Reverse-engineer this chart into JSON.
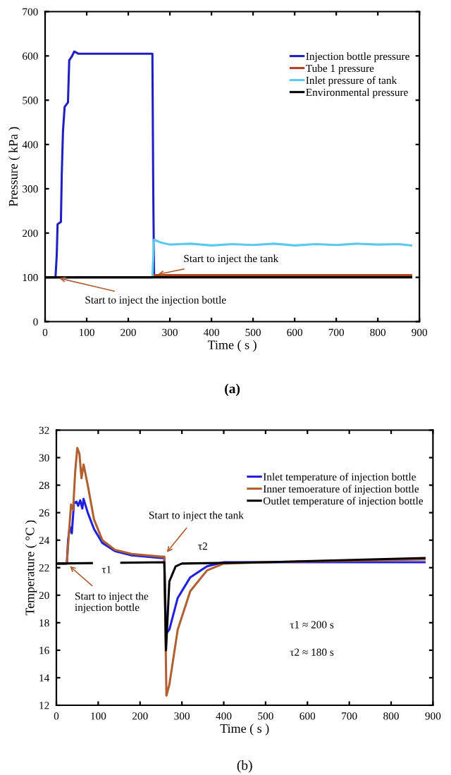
{
  "chart_data": [
    {
      "type": "line",
      "title": "(a)",
      "xlabel": "Time ( s )",
      "ylabel": "Pressure ( kPa )",
      "xlim": [
        0,
        900
      ],
      "ylim": [
        0,
        700
      ],
      "xticks": [
        0,
        100,
        200,
        300,
        400,
        500,
        600,
        700,
        800,
        900
      ],
      "yticks": [
        0,
        100,
        200,
        300,
        400,
        500,
        600,
        700
      ],
      "legend": "top right",
      "grid": false,
      "series": [
        {
          "name": "Injection bottle pressure",
          "color": "#2020c0",
          "x": [
            0,
            25,
            28,
            30,
            38,
            40,
            43,
            47,
            55,
            58,
            65,
            70,
            80,
            258,
            260,
            262,
            880
          ],
          "values": [
            100,
            100,
            150,
            220,
            225,
            330,
            430,
            485,
            495,
            590,
            600,
            610,
            605,
            605,
            300,
            105,
            102
          ]
        },
        {
          "name": "Tube 1 pressure",
          "color": "#b04020",
          "x": [
            0,
            258,
            262,
            880
          ],
          "values": [
            100,
            100,
            105,
            105
          ]
        },
        {
          "name": "Inlet pressure of tank",
          "color": "#5bc8f0",
          "x": [
            0,
            258,
            262,
            280,
            300,
            350,
            400,
            450,
            500,
            550,
            600,
            650,
            700,
            750,
            800,
            850,
            880
          ],
          "values": [
            100,
            100,
            185,
            178,
            174,
            176,
            172,
            175,
            173,
            176,
            172,
            175,
            173,
            176,
            174,
            175,
            172
          ]
        },
        {
          "name": "Environmental pressure",
          "color": "#000000",
          "x": [
            0,
            880
          ],
          "values": [
            100,
            100
          ]
        }
      ],
      "annotations": [
        {
          "text": "Start to inject the tank",
          "x": 262,
          "y": 105
        },
        {
          "text": "Start to inject the injection bottle",
          "x": 25,
          "y": 100
        }
      ]
    },
    {
      "type": "line",
      "title": "(b)",
      "xlabel": "Time ( s )",
      "ylabel": "Temperature ( °C )",
      "xlim": [
        0,
        900
      ],
      "ylim": [
        12,
        32
      ],
      "xticks": [
        0,
        100,
        200,
        300,
        400,
        500,
        600,
        700,
        800,
        900
      ],
      "yticks": [
        12,
        14,
        16,
        18,
        20,
        22,
        24,
        26,
        28,
        30,
        32
      ],
      "legend": "top right",
      "grid": false,
      "series": [
        {
          "name": "Inlet temperature of injection bottle",
          "color": "#2020e0",
          "x": [
            0,
            25,
            28,
            32,
            37,
            42,
            48,
            52,
            57,
            62,
            65,
            75,
            90,
            110,
            140,
            180,
            250,
            258,
            262,
            270,
            290,
            320,
            360,
            400,
            500,
            880
          ],
          "values": [
            22.3,
            22.3,
            24,
            25,
            24.5,
            26.7,
            26.8,
            26.5,
            26.9,
            26.3,
            27,
            26,
            24.8,
            23.8,
            23.2,
            22.9,
            22.7,
            22.7,
            17.2,
            17.5,
            19.8,
            21.3,
            22.1,
            22.4,
            22.4,
            22.4
          ]
        },
        {
          "name": "Inner temoerature of injection bottle",
          "color": "#b06030",
          "x": [
            0,
            25,
            30,
            35,
            40,
            45,
            50,
            55,
            60,
            65,
            75,
            90,
            110,
            140,
            180,
            250,
            258,
            263,
            270,
            290,
            320,
            360,
            400,
            500,
            880
          ],
          "values": [
            22.3,
            22.3,
            24.5,
            26.6,
            26.2,
            29,
            30.7,
            30.3,
            28.5,
            29.5,
            28,
            25.5,
            24,
            23.3,
            23,
            22.8,
            22.8,
            12.7,
            13.5,
            17.5,
            20.3,
            21.8,
            22.3,
            22.4,
            22.6
          ]
        },
        {
          "name": "Outlet temperature of injection bottle",
          "color": "#000000",
          "x": [
            0,
            258,
            262,
            270,
            285,
            300,
            500,
            880
          ],
          "values": [
            22.3,
            22.4,
            16,
            21,
            22.1,
            22.3,
            22.4,
            22.7
          ]
        }
      ],
      "annotations": [
        {
          "text": "Start to inject the tank",
          "x": 258,
          "y": 22.9
        },
        {
          "text": "Start to inject the\ninjection bottle",
          "x": 25,
          "y": 22.3
        },
        {
          "text": "τ1",
          "x": 120,
          "y": 21.8
        },
        {
          "text": "τ2",
          "x": 350,
          "y": 23.5
        },
        "τ1 ≈ 200 s",
        "τ2 ≈ 180 s"
      ]
    }
  ]
}
